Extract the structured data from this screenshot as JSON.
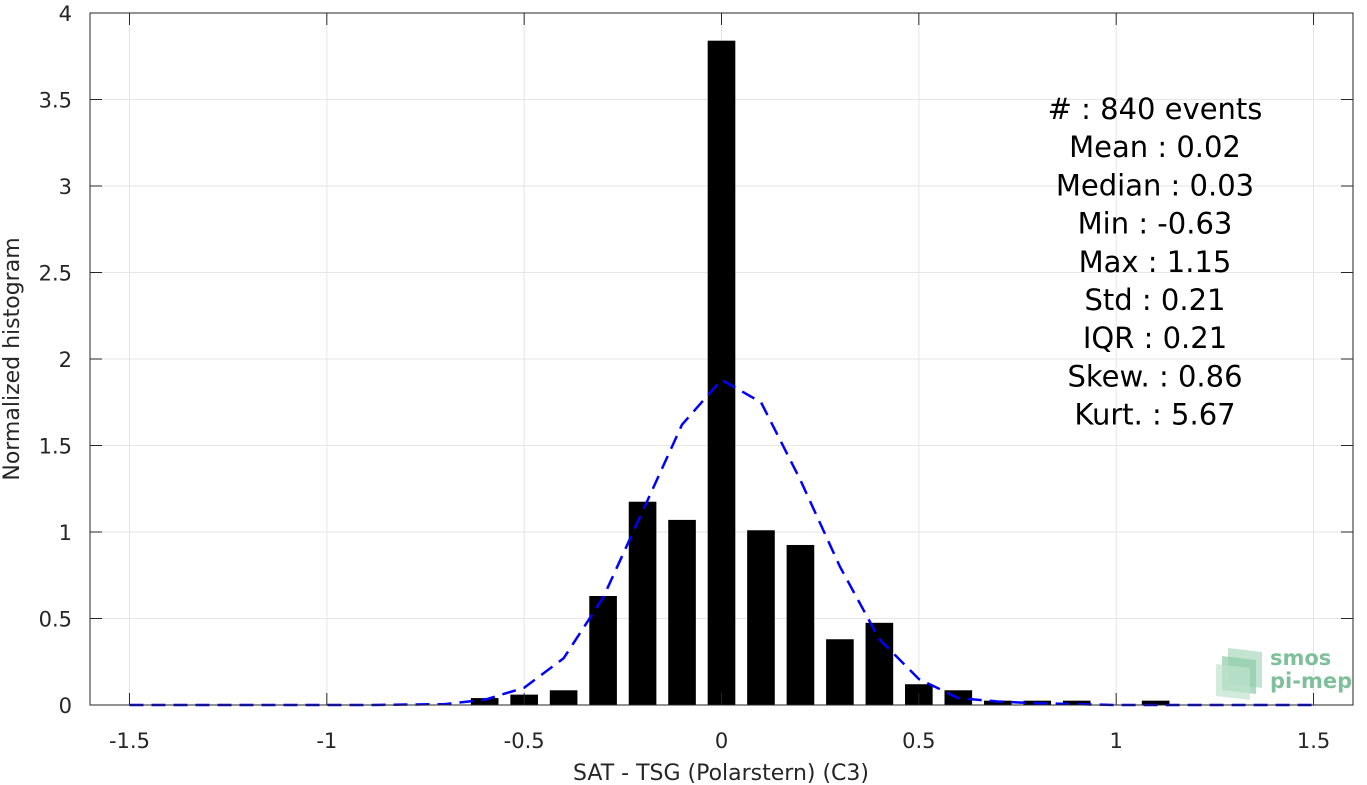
{
  "chart_data": {
    "type": "bar",
    "xlabel": "SAT - TSG (Polarstern) (C3)",
    "ylabel": "Normalized histogram",
    "xlim": [
      -1.6,
      1.6
    ],
    "ylim": [
      0,
      4
    ],
    "xticks": [
      -1.5,
      -1,
      -0.5,
      0,
      0.5,
      1,
      1.5
    ],
    "xtick_labels": [
      "-1.5",
      "-1",
      "-0.5",
      "0",
      "0.5",
      "1",
      "1.5"
    ],
    "yticks": [
      0,
      0.5,
      1,
      1.5,
      2,
      2.5,
      3,
      3.5,
      4
    ],
    "ytick_labels": [
      "0",
      "0.5",
      "1",
      "1.5",
      "2",
      "2.5",
      "3",
      "3.5",
      "4"
    ],
    "grid": true,
    "bar_width": 0.07,
    "colors": {
      "bars": "#000000",
      "fit": "#0000ff",
      "grid": "#e6e6e6",
      "axis": "#262626"
    },
    "bars": [
      {
        "x": -0.6,
        "y": 0.04
      },
      {
        "x": -0.5,
        "y": 0.06
      },
      {
        "x": -0.4,
        "y": 0.085
      },
      {
        "x": -0.3,
        "y": 0.63
      },
      {
        "x": -0.2,
        "y": 1.175
      },
      {
        "x": -0.1,
        "y": 1.07
      },
      {
        "x": 0.0,
        "y": 3.84
      },
      {
        "x": 0.1,
        "y": 1.01
      },
      {
        "x": 0.2,
        "y": 0.925
      },
      {
        "x": 0.3,
        "y": 0.38
      },
      {
        "x": 0.4,
        "y": 0.475
      },
      {
        "x": 0.5,
        "y": 0.12
      },
      {
        "x": 0.6,
        "y": 0.085
      },
      {
        "x": 0.7,
        "y": 0.025
      },
      {
        "x": 0.8,
        "y": 0.025
      },
      {
        "x": 0.9,
        "y": 0.025
      },
      {
        "x": 1.1,
        "y": 0.025
      }
    ],
    "fit_line": {
      "style": "dashed",
      "x": [
        -1.5,
        -1.2,
        -0.9,
        -0.7,
        -0.6,
        -0.5,
        -0.4,
        -0.3,
        -0.2,
        -0.1,
        0.0,
        0.1,
        0.2,
        0.3,
        0.4,
        0.5,
        0.6,
        0.7,
        0.8,
        0.9,
        1.0,
        1.2,
        1.5
      ],
      "y": [
        0.0,
        0.0,
        0.0,
        0.005,
        0.03,
        0.1,
        0.27,
        0.62,
        1.12,
        1.62,
        1.88,
        1.75,
        1.3,
        0.8,
        0.38,
        0.15,
        0.04,
        0.02,
        0.01,
        0.005,
        0.0,
        0.0,
        0.0
      ]
    },
    "annotations": [
      "#  : 840 events",
      "Mean : 0.02",
      "Median : 0.03",
      "Min : -0.63",
      "Max : 1.15",
      "Std : 0.21",
      "IQR : 0.21",
      "Skew. : 0.86",
      "Kurt. : 5.67"
    ]
  },
  "logo": {
    "line1": "smos",
    "line2": "pi-mep"
  }
}
